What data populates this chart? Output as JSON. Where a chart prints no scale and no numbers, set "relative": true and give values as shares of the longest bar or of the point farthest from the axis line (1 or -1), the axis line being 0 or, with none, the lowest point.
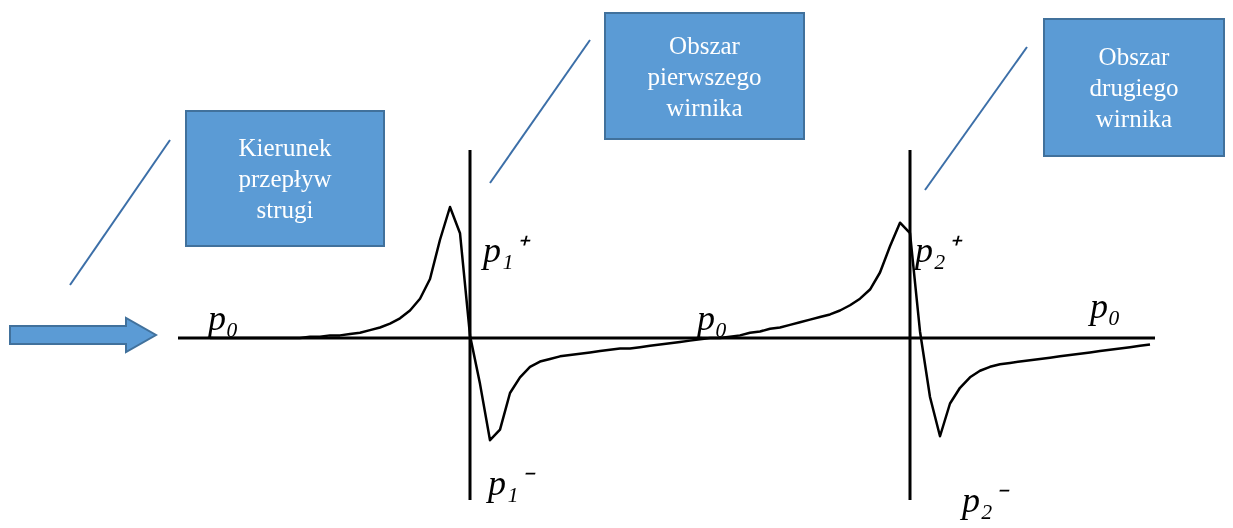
{
  "chart_data": {
    "type": "line",
    "relative": true,
    "color": "#000000",
    "marker": "none",
    "categories": [
      null,
      null,
      null,
      null,
      null,
      null,
      null,
      null,
      null,
      null,
      null,
      null,
      null,
      null,
      null,
      null,
      null,
      null,
      null,
      null,
      null,
      null,
      null,
      null,
      null,
      null,
      null,
      null,
      null,
      null,
      null,
      null,
      null,
      null,
      null,
      null,
      null,
      null,
      null,
      null,
      null,
      null,
      null,
      null,
      null,
      null,
      null,
      null,
      null,
      null,
      null,
      null,
      null,
      null,
      null,
      null,
      null,
      null,
      null,
      null,
      null,
      null,
      null,
      null,
      null,
      null,
      null,
      null,
      null,
      null,
      null,
      null,
      null,
      null,
      null,
      null,
      null,
      null,
      null,
      null,
      null,
      null,
      null,
      null,
      null,
      null,
      null,
      null,
      null,
      null,
      null,
      null,
      null,
      null,
      null,
      null,
      null,
      null
    ],
    "values": [
      null,
      null,
      null,
      0,
      0,
      0,
      0,
      0,
      0,
      0,
      0,
      0,
      0,
      0.01,
      0.01,
      0.02,
      0.02,
      0.03,
      0.04,
      0.06,
      0.08,
      0.11,
      0.15,
      0.21,
      0.3,
      0.45,
      0.75,
      1,
      0.8,
      0.02,
      -0.35,
      -0.78,
      -0.7,
      -0.42,
      -0.3,
      -0.22,
      -0.18,
      -0.16,
      -0.14,
      -0.13,
      -0.12,
      -0.11,
      -0.1,
      -0.09,
      -0.08,
      -0.08,
      -0.07,
      -0.06,
      -0.05,
      -0.04,
      -0.03,
      -0.02,
      -0.01,
      0,
      0,
      0.01,
      0.02,
      0.04,
      0.05,
      0.07,
      0.08,
      0.1,
      0.12,
      0.14,
      0.16,
      0.18,
      0.21,
      0.25,
      0.3,
      0.37,
      0.5,
      0.7,
      0.88,
      0.8,
      0.05,
      -0.45,
      -0.75,
      -0.5,
      -0.38,
      -0.3,
      -0.25,
      -0.22,
      -0.2,
      -0.19,
      -0.18,
      -0.17,
      -0.16,
      -0.15,
      -0.14,
      -0.13,
      -0.12,
      -0.11,
      -0.1,
      -0.09,
      -0.08,
      -0.07,
      -0.06,
      -0.05
    ],
    "annotations": [
      "Kierunek przepływ strugi",
      "Obszar pierwszego wirnika",
      "Obszar drugiego wirnika",
      "p₀",
      "p₁⁺",
      "p₁⁻",
      "p₀",
      "p₂⁺",
      "p₂⁻",
      "p₀"
    ]
  }
}
